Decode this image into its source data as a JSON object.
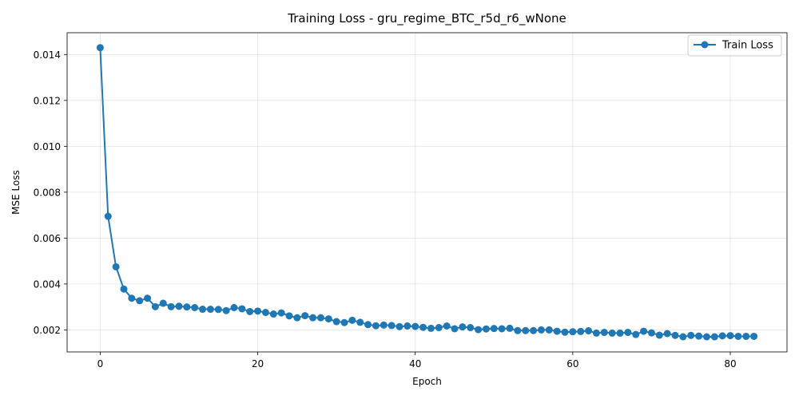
{
  "chart_data": {
    "type": "line",
    "title": "Training Loss - gru_regime_BTC_r5d_r6_wNone",
    "xlabel": "Epoch",
    "ylabel": "MSE Loss",
    "xlim": [
      -4.2,
      87.2
    ],
    "ylim": [
      0.00104,
      0.01495
    ],
    "xticks": [
      0,
      20,
      40,
      60,
      80
    ],
    "xtick_labels": [
      "0",
      "20",
      "40",
      "60",
      "80"
    ],
    "yticks": [
      0.002,
      0.004,
      0.006,
      0.008,
      0.01,
      0.012,
      0.014
    ],
    "ytick_labels": [
      "0.002",
      "0.004",
      "0.006",
      "0.008",
      "0.010",
      "0.012",
      "0.014"
    ],
    "grid": true,
    "legend_position": "top-right",
    "series": [
      {
        "name": "Train Loss",
        "color": "#1f77b4",
        "marker": "circle",
        "x": [
          0,
          1,
          2,
          3,
          4,
          5,
          6,
          7,
          8,
          9,
          10,
          11,
          12,
          13,
          14,
          15,
          16,
          17,
          18,
          19,
          20,
          21,
          22,
          23,
          24,
          25,
          26,
          27,
          28,
          29,
          30,
          31,
          32,
          33,
          34,
          35,
          36,
          37,
          38,
          39,
          40,
          41,
          42,
          43,
          44,
          45,
          46,
          47,
          48,
          49,
          50,
          51,
          52,
          53,
          54,
          55,
          56,
          57,
          58,
          59,
          60,
          61,
          62,
          63,
          64,
          65,
          66,
          67,
          68,
          69,
          70,
          71,
          72,
          73,
          74,
          75,
          76,
          77,
          78,
          79,
          80,
          81,
          82,
          83
        ],
        "values": [
          0.0143,
          0.00695,
          0.00475,
          0.00378,
          0.00338,
          0.00327,
          0.00338,
          0.00301,
          0.00316,
          0.00301,
          0.00303,
          0.003,
          0.00297,
          0.0029,
          0.0029,
          0.00289,
          0.00284,
          0.00297,
          0.00292,
          0.0028,
          0.00282,
          0.00276,
          0.00269,
          0.00274,
          0.00261,
          0.00253,
          0.00262,
          0.00253,
          0.00253,
          0.00248,
          0.00236,
          0.00232,
          0.00242,
          0.00233,
          0.00223,
          0.00218,
          0.00221,
          0.00219,
          0.00214,
          0.00217,
          0.00215,
          0.00211,
          0.00207,
          0.0021,
          0.00217,
          0.00205,
          0.00213,
          0.0021,
          0.00201,
          0.00204,
          0.00206,
          0.00205,
          0.00207,
          0.00197,
          0.00197,
          0.00197,
          0.002,
          0.002,
          0.00194,
          0.0019,
          0.00192,
          0.00193,
          0.00196,
          0.00186,
          0.00189,
          0.00186,
          0.00186,
          0.00189,
          0.0018,
          0.00194,
          0.00187,
          0.00177,
          0.00184,
          0.00176,
          0.0017,
          0.00176,
          0.00173,
          0.0017,
          0.0017,
          0.00174,
          0.00175,
          0.00172,
          0.00172,
          0.00172
        ]
      }
    ]
  }
}
